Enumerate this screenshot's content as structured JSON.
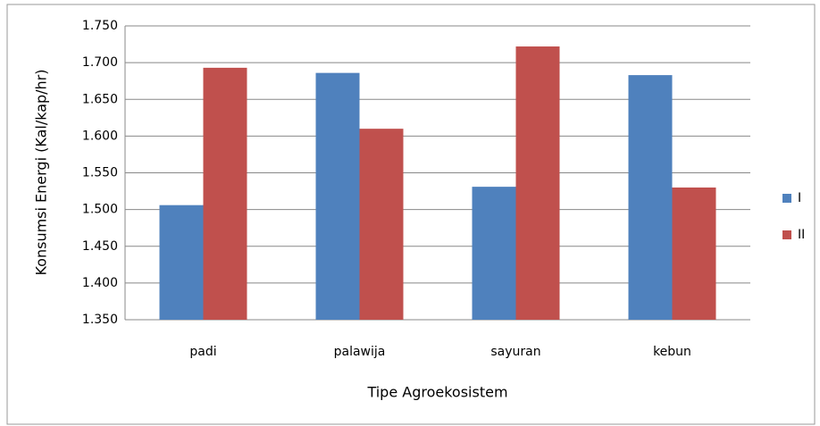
{
  "chart_data": {
    "type": "bar",
    "x_label": "Tipe Agroekosistem",
    "y_label": "Konsumsi Energi (Kal/kap/hr)",
    "categories": [
      "padi",
      "palawija",
      "sayuran",
      "kebun"
    ],
    "series": [
      {
        "name": "I",
        "color": "#4f81bd",
        "values": [
          1506,
          1686,
          1531,
          1683
        ]
      },
      {
        "name": "II",
        "color": "#c0504d",
        "values": [
          1693,
          1610,
          1722,
          1530
        ]
      }
    ],
    "ylim": [
      1350,
      1750
    ],
    "yticks": [
      {
        "value": 1350,
        "label": "1.350"
      },
      {
        "value": 1400,
        "label": "1.400"
      },
      {
        "value": 1450,
        "label": "1.450"
      },
      {
        "value": 1500,
        "label": "1.500"
      },
      {
        "value": 1550,
        "label": "1.550"
      },
      {
        "value": 1600,
        "label": "1.600"
      },
      {
        "value": 1650,
        "label": "1.650"
      },
      {
        "value": 1700,
        "label": "1.700"
      },
      {
        "value": 1750,
        "label": "1.750"
      }
    ],
    "grid": true,
    "legend": "right"
  }
}
